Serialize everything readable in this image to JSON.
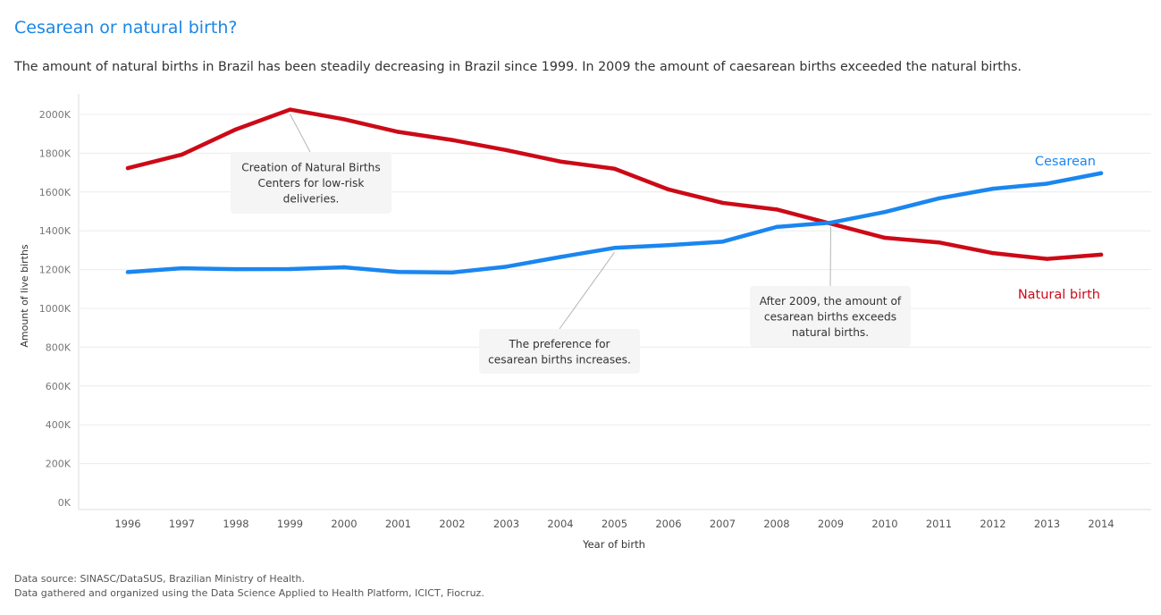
{
  "title": "Cesarean or natural birth?",
  "subtitle": "The amount of natural births in Brazil has been steadily decreasing in Brazil since 1999. In 2009 the amount of caesarean births exceeded the natural births.",
  "footnotes": {
    "source": "Data source: SINASC/DataSUS, Brazilian Ministry of Health.",
    "gathered": "Data gathered and organized using the Data Science Applied to Health Platform, ICICT, Fiocruz."
  },
  "colors": {
    "cesarean": "#1a86f0",
    "natural": "#cc0a17",
    "title": "#1a86e6",
    "grid": "#ececec",
    "annotation_bg": "#f5f5f5"
  },
  "chart_data": {
    "type": "line",
    "title": "Cesarean or natural birth?",
    "xlabel": "Year of birth",
    "ylabel": "Amount of live births",
    "x": [
      1996,
      1997,
      1998,
      1999,
      2000,
      2001,
      2002,
      2003,
      2004,
      2005,
      2006,
      2007,
      2008,
      2009,
      2010,
      2011,
      2012,
      2013,
      2014
    ],
    "ylim": [
      0,
      2100000
    ],
    "yticks": [
      0,
      200000,
      400000,
      600000,
      800000,
      1000000,
      1200000,
      1400000,
      1600000,
      1800000,
      2000000
    ],
    "ytick_labels": [
      "0K",
      "200K",
      "400K",
      "600K",
      "800K",
      "1000K",
      "1200K",
      "1400K",
      "1600K",
      "1800K",
      "2000K"
    ],
    "grid": true,
    "series": [
      {
        "name": "Natural birth",
        "label": "Natural birth",
        "color": "#cc0a17",
        "values": [
          1723000,
          1793000,
          1923000,
          2025000,
          1975000,
          1910000,
          1868000,
          1816000,
          1757000,
          1720000,
          1613000,
          1544000,
          1510000,
          1437000,
          1364000,
          1340000,
          1285000,
          1255000,
          1277000
        ]
      },
      {
        "name": "Cesarean",
        "label": "Cesarean",
        "color": "#1a86f0",
        "values": [
          1187000,
          1207000,
          1202000,
          1203000,
          1212000,
          1188000,
          1185000,
          1215000,
          1265000,
          1312000,
          1326000,
          1344000,
          1420000,
          1442000,
          1497000,
          1567000,
          1617000,
          1643000,
          1697000
        ]
      }
    ],
    "annotations": [
      {
        "lines": [
          "Creation of Natural Births",
          "Centers for low-risk",
          "deliveries."
        ],
        "year": 1999,
        "series": "Natural birth"
      },
      {
        "lines": [
          "The preference for",
          "cesarean births increases."
        ],
        "year": 2005,
        "series": "Cesarean"
      },
      {
        "lines": [
          "After 2009, the amount of",
          "cesarean births exceeds",
          "natural births."
        ],
        "year": 2009,
        "series": "Cesarean"
      }
    ]
  }
}
